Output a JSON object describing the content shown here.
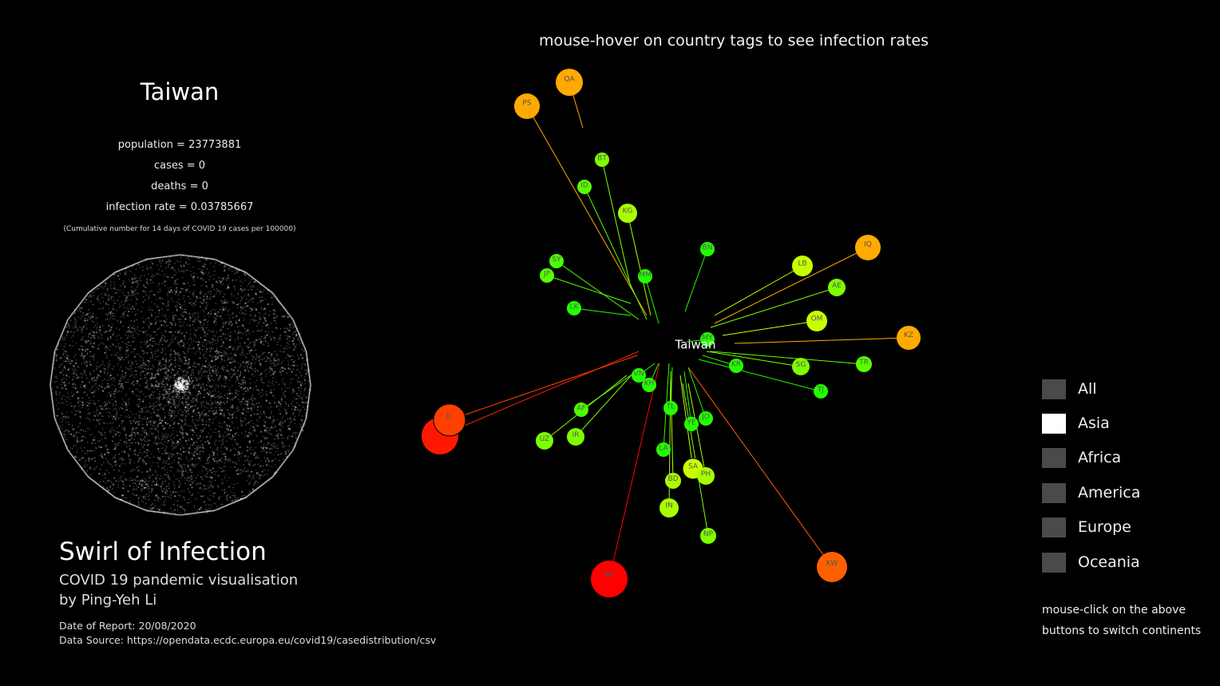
{
  "header": {
    "hint": "mouse-hover on country tags to see infection rates"
  },
  "country": {
    "name": "Taiwan",
    "population": "population = 23773881",
    "cases": "cases = 0",
    "deaths": "deaths = 0",
    "infection_rate": "infection rate = 0.03785667",
    "note": "(Cumulative number for 14 days of COVID 19 cases per 100000)"
  },
  "app": {
    "title": "Swirl of Infection",
    "subtitle": "COVID 19 pandemic visualisation",
    "author": "by Ping-Yeh Li",
    "report_date": "Date of Report: 20/08/2020",
    "data_source": "Data Source: https://opendata.ecdc.europa.eu/covid19/casedistribution/csv"
  },
  "network": {
    "center": "Taiwan",
    "tags": [
      {
        "code": "QA",
        "color": "#ffaa00"
      },
      {
        "code": "PS",
        "color": "#ffaa00"
      },
      {
        "code": "BT",
        "color": "#7dff00"
      },
      {
        "code": "ID",
        "color": "#5aff00"
      },
      {
        "code": "KG",
        "color": "#a8ff00"
      },
      {
        "code": "SY",
        "color": "#4dff00"
      },
      {
        "code": "JP",
        "color": "#5aff00"
      },
      {
        "code": "MM",
        "color": "#22ff00"
      },
      {
        "code": "LK",
        "color": "#22ff00"
      },
      {
        "code": "BN",
        "color": "#22ff00"
      },
      {
        "code": "LB",
        "color": "#c8ff00"
      },
      {
        "code": "IQ",
        "color": "#ffaa00"
      },
      {
        "code": "AE",
        "color": "#7dff00"
      },
      {
        "code": "OM",
        "color": "#c8ff00"
      },
      {
        "code": "KZ",
        "color": "#ffaa00"
      },
      {
        "code": "MY",
        "color": "#22ff00"
      },
      {
        "code": "KR",
        "color": "#22ff00"
      },
      {
        "code": "SG",
        "color": "#7dff00"
      },
      {
        "code": "TR",
        "color": "#5aff00"
      },
      {
        "code": "TJ",
        "color": "#22ff00"
      },
      {
        "code": "VN",
        "color": "#22ff00"
      },
      {
        "code": "KH",
        "color": "#22ff00"
      },
      {
        "code": "AF",
        "color": "#4dff00"
      },
      {
        "code": "IL",
        "color": "#ff4000"
      },
      {
        "code": "UZ",
        "color": "#7dff00"
      },
      {
        "code": "IR",
        "color": "#7dff00"
      },
      {
        "code": "TL",
        "color": "#22ff00"
      },
      {
        "code": "JO",
        "color": "#22ff00"
      },
      {
        "code": "YE",
        "color": "#22ff00"
      },
      {
        "code": "LA",
        "color": "#22ff00"
      },
      {
        "code": "SA",
        "color": "#c8ff00"
      },
      {
        "code": "PH",
        "color": "#a8ff00"
      },
      {
        "code": "BD",
        "color": "#a8ff00"
      },
      {
        "code": "IN",
        "color": "#a8ff00"
      },
      {
        "code": "NP",
        "color": "#7dff00"
      },
      {
        "code": "MV",
        "color": "#ff0000"
      },
      {
        "code": "KW",
        "color": "#ff6000"
      }
    ]
  },
  "continents": {
    "buttons": [
      {
        "label": "All",
        "active": false
      },
      {
        "label": "Asia",
        "active": true
      },
      {
        "label": "Africa",
        "active": false
      },
      {
        "label": "America",
        "active": false
      },
      {
        "label": "Europe",
        "active": false
      },
      {
        "label": "Oceania",
        "active": false
      }
    ],
    "hint": "mouse-click on the above buttons to switch continents"
  }
}
